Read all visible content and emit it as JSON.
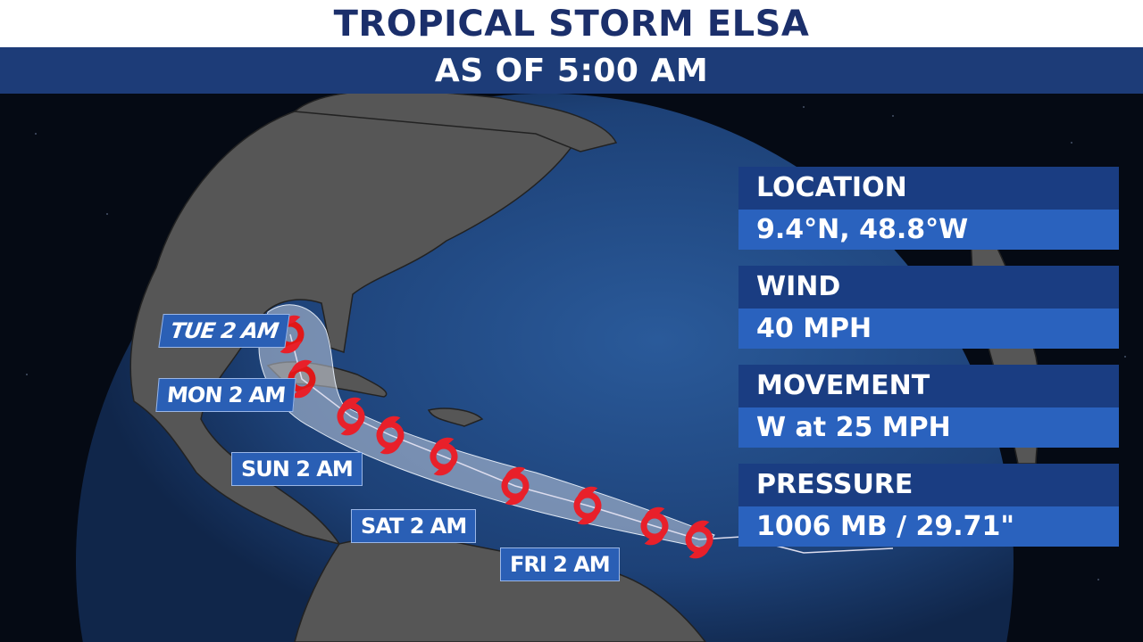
{
  "header": {
    "title": "TROPICAL STORM ELSA",
    "subtitle": "AS OF 5:00 AM"
  },
  "panels": [
    {
      "label": "LOCATION",
      "value": "9.4°N,  48.8°W"
    },
    {
      "label": "WIND",
      "value": "40 MPH"
    },
    {
      "label": "MOVEMENT",
      "value": "W at 25 MPH"
    },
    {
      "label": "PRESSURE",
      "value": "1006 MB / 29.71\""
    }
  ],
  "forecast_labels": [
    "TUE 2 AM",
    "MON 2 AM",
    "SUN 2 AM",
    "SAT 2 AM",
    "FRI 2 AM"
  ],
  "storm_icon": "tropical-storm-icon",
  "colors": {
    "title": "#1b2f6b",
    "bar": "#1d3c78",
    "panel_header": "#1a3d82",
    "panel_value": "#2a62be",
    "storm": "#e8202a",
    "land": "#555555",
    "ocean": "#1f4a86"
  }
}
